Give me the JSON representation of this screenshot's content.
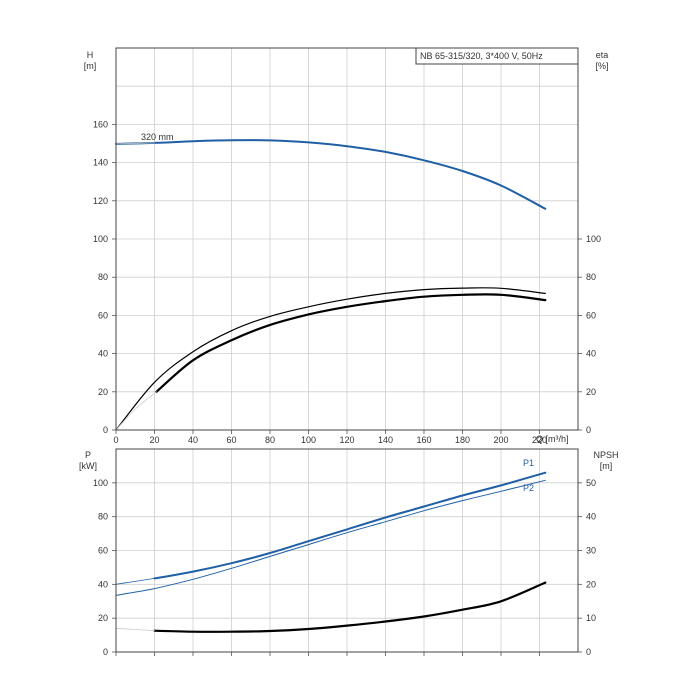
{
  "colors": {
    "blue": "#1f5fa6",
    "black": "#000000",
    "grid": "#cfcfcf"
  },
  "chart_data": [
    {
      "type": "line",
      "title": "NB 65-315/320, 3*400 V, 50Hz",
      "xlabel": "Q [m³/h]",
      "xlim": [
        0,
        240
      ],
      "xticks": [
        0,
        20,
        40,
        60,
        80,
        100,
        120,
        140,
        160,
        180,
        200,
        220
      ],
      "left_axis": {
        "label_name": "H",
        "label_unit": "[m]",
        "ylim": [
          0,
          200
        ],
        "ticks": [
          0,
          20,
          40,
          60,
          80,
          100,
          120,
          140,
          160
        ]
      },
      "right_axis": {
        "label_name": "eta",
        "label_unit": "[%]",
        "ylim": [
          0,
          200
        ],
        "ticks": [
          0,
          20,
          40,
          60,
          80,
          100
        ]
      },
      "series": [
        {
          "name": "320 mm",
          "axis": "left",
          "color": "#1f5fa6",
          "width": 2,
          "x": [
            0,
            20,
            40,
            60,
            80,
            100,
            120,
            140,
            160,
            180,
            200,
            223
          ],
          "y": [
            149.8,
            150.3,
            151.2,
            151.7,
            151.6,
            150.6,
            148.6,
            145.6,
            141.2,
            135.6,
            128,
            115.8
          ]
        },
        {
          "axis": "left",
          "color": "#cccccc",
          "width": 0.8,
          "x": [
            0,
            20
          ],
          "y": [
            149.8,
            150.3
          ]
        },
        {
          "axis": "right",
          "color": "#000000",
          "width": 1.2,
          "x": [
            0,
            20,
            40,
            60,
            80,
            100,
            120,
            140,
            160,
            180,
            200,
            223
          ],
          "y": [
            0,
            25,
            41,
            52,
            59.5,
            64.5,
            68.5,
            71.5,
            73.5,
            74.3,
            74.2,
            71.5
          ]
        },
        {
          "axis": "right",
          "color": "#000000",
          "width": 2.2,
          "x": [
            21,
            40,
            60,
            80,
            100,
            120,
            140,
            160,
            180,
            200,
            223
          ],
          "y": [
            20,
            36.5,
            47,
            55,
            60.5,
            64.5,
            67.5,
            69.8,
            70.8,
            70.8,
            68
          ]
        },
        {
          "axis": "right",
          "color": "#cccccc",
          "width": 0.8,
          "x": [
            0,
            10,
            21
          ],
          "y": [
            0,
            11,
            20
          ]
        }
      ]
    },
    {
      "type": "line",
      "xlim": [
        0,
        240
      ],
      "left_axis": {
        "label_name": "P",
        "label_unit": "[kW]",
        "ylim": [
          0,
          120
        ],
        "ticks": [
          0,
          20,
          40,
          60,
          80,
          100
        ]
      },
      "right_axis": {
        "label_name": "NPSH",
        "label_unit": "[m]",
        "ylim": [
          0,
          60
        ],
        "ticks": [
          0,
          10,
          20,
          30,
          40,
          50
        ]
      },
      "series": [
        {
          "name": "P1",
          "axis": "left",
          "color": "#1f5fa6",
          "width": 2,
          "x": [
            20,
            40,
            60,
            80,
            100,
            120,
            140,
            160,
            180,
            200,
            223
          ],
          "y": [
            43.5,
            47.5,
            52.5,
            58.5,
            65.5,
            72.5,
            79.5,
            86,
            92.5,
            98.5,
            106
          ]
        },
        {
          "axis": "left",
          "color": "#1f5fa6",
          "width": 0.8,
          "x": [
            0,
            20
          ],
          "y": [
            40,
            43.5
          ]
        },
        {
          "name": "P2",
          "axis": "left",
          "color": "#1f5fa6",
          "width": 1,
          "x": [
            0,
            20,
            40,
            60,
            80,
            100,
            120,
            140,
            160,
            180,
            200,
            223
          ],
          "y": [
            33.5,
            37.5,
            43,
            49.5,
            56.5,
            63.5,
            70.5,
            77,
            83.5,
            89.5,
            95,
            101.5
          ]
        },
        {
          "axis": "right",
          "color": "#000000",
          "width": 2.2,
          "x": [
            20,
            40,
            60,
            80,
            100,
            120,
            140,
            160,
            180,
            200,
            223
          ],
          "y": [
            6.3,
            6,
            6,
            6.2,
            6.8,
            7.8,
            9,
            10.5,
            12.5,
            15,
            20.5
          ]
        },
        {
          "axis": "right",
          "color": "#cccccc",
          "width": 0.8,
          "x": [
            0,
            20
          ],
          "y": [
            7,
            6.3
          ]
        }
      ]
    }
  ]
}
